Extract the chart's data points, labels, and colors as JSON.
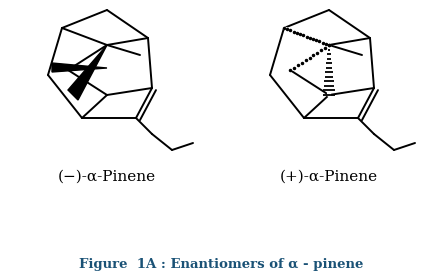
{
  "title": "Figure  1A : Enantiomers of α - pinene",
  "title_color": "#1a5276",
  "label_left": "(−)-α-Pinene",
  "label_right": "(+)-α-Pinene",
  "bg_color": "#ffffff",
  "line_color": "#000000",
  "figsize": [
    4.42,
    2.79
  ],
  "dpi": 100
}
